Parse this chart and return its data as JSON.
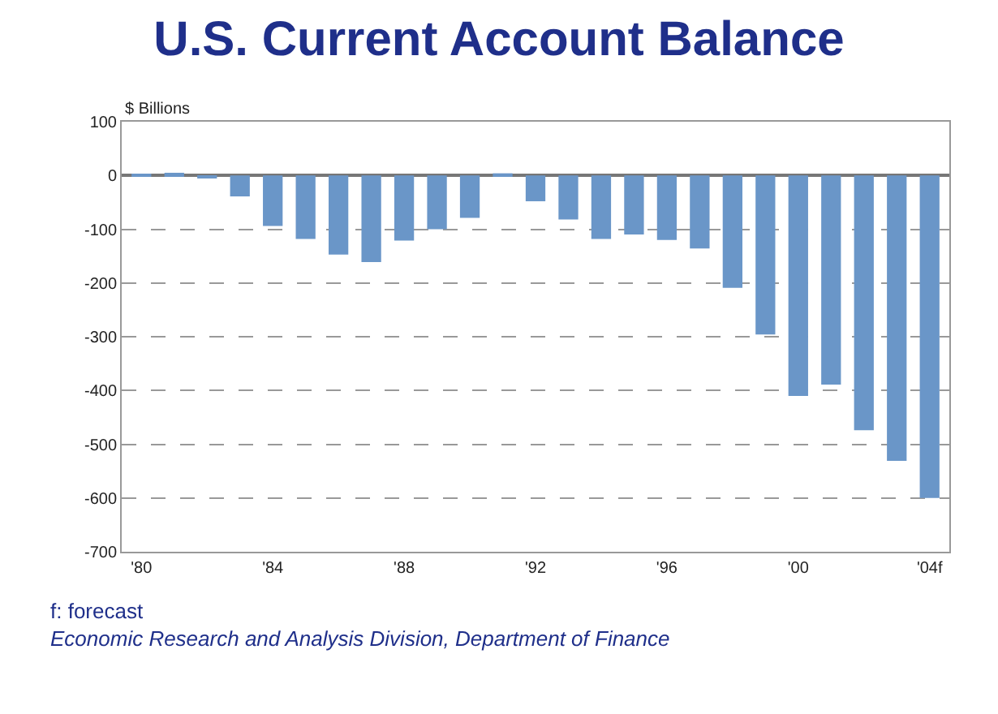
{
  "chart_data": {
    "type": "bar",
    "title": "U.S. Current Account Balance",
    "ylabel": "$ Billions",
    "categories": [
      "'80",
      null,
      null,
      null,
      "'84",
      null,
      null,
      null,
      "'88",
      null,
      null,
      null,
      "'92",
      null,
      null,
      null,
      "'96",
      null,
      null,
      null,
      "'00",
      null,
      null,
      null,
      "'04f"
    ],
    "values": [
      2,
      5,
      -5,
      -39,
      -94,
      -118,
      -147,
      -161,
      -121,
      -100,
      -79,
      4,
      -48,
      -82,
      -118,
      -110,
      -120,
      -136,
      -209,
      -296,
      -410,
      -389,
      -474,
      -531,
      -600
    ],
    "color": "#6a96c8",
    "ylim": [
      -700,
      100
    ],
    "yticks": [
      -700,
      -600,
      -500,
      -400,
      -300,
      -200,
      -100,
      0,
      100
    ],
    "grid": "y",
    "annotations": [
      "f: forecast",
      "Economic Research and Analysis Division, Department of Finance"
    ]
  }
}
